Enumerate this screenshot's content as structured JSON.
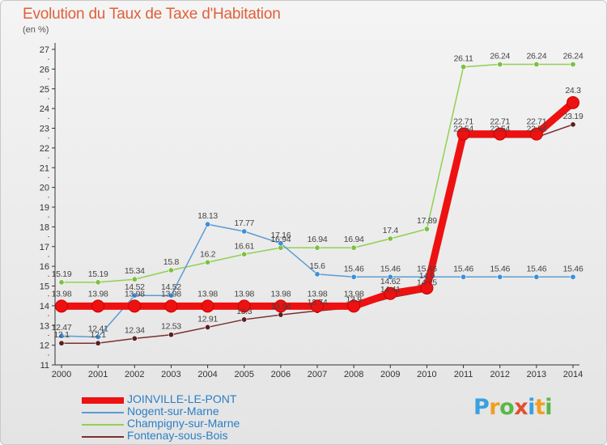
{
  "header": {
    "title": "Evolution du Taux de Taxe d'Habitation",
    "subtitle": "(en %)"
  },
  "brand": {
    "letters": [
      "P",
      "r",
      "o",
      "x",
      "i",
      "t",
      "i"
    ],
    "colors": [
      "#3aa0e0",
      "#f0a020",
      "#58b848",
      "#e05030",
      "#3aa0e0",
      "#f0a020",
      "#58b848"
    ]
  },
  "chart_data": {
    "type": "line",
    "title": "Evolution du Taux de Taxe d'Habitation",
    "ylabel": "(en %)",
    "xlabel": "",
    "x": [
      "2000",
      "2001",
      "2002",
      "2003",
      "2004",
      "2005",
      "2006",
      "2007",
      "2008",
      "2009",
      "2010",
      "2011",
      "2012",
      "2013",
      "2014"
    ],
    "ylim": [
      11,
      27
    ],
    "yticks": [
      "11",
      "12",
      "13",
      "14",
      "15",
      "16",
      "17",
      "18",
      "19",
      "20",
      "21",
      "22",
      "23",
      "24",
      "25",
      "26",
      "27"
    ],
    "grid": false,
    "legend_position": "bottom-left",
    "series": [
      {
        "name": "JOINVILLE-LE-PONT",
        "color": "#ee1111",
        "values": [
          13.98,
          13.98,
          13.98,
          13.98,
          13.98,
          13.98,
          13.98,
          13.98,
          13.98,
          14.62,
          14.9,
          22.71,
          22.71,
          22.71,
          24.3
        ],
        "labels": [
          "13.98",
          "13.98",
          "13.98",
          "13.98",
          "13.98",
          "13.98",
          "13.98",
          "13.98",
          "13.98",
          "14.62",
          "14.9",
          "22.71",
          "22.71",
          "22.71",
          "24.3"
        ]
      },
      {
        "name": "Nogent-sur-Marne",
        "color": "#5b9bd5",
        "values": [
          12.47,
          12.41,
          14.52,
          14.52,
          18.13,
          17.77,
          17.16,
          15.6,
          15.46,
          15.46,
          15.46,
          15.46,
          15.46,
          15.46,
          15.46
        ],
        "labels": [
          "12.47",
          "12.41",
          "14.52",
          "14.52",
          "18.13",
          "17.77",
          "17.16",
          "15.6",
          "15.46",
          "15.46",
          "15.46",
          "15.46",
          "15.46",
          "15.46",
          "15.46"
        ]
      },
      {
        "name": "Champigny-sur-Marne",
        "color": "#92d050",
        "values": [
          15.19,
          15.19,
          15.34,
          15.8,
          16.2,
          16.61,
          16.94,
          16.94,
          16.94,
          17.4,
          17.89,
          26.11,
          26.24,
          26.24,
          26.24
        ],
        "labels": [
          "15.19",
          "15.19",
          "15.34",
          "15.8",
          "16.2",
          "16.61",
          "16.94",
          "16.94",
          "16.94",
          "17.4",
          "17.89",
          "26.11",
          "26.24",
          "26.24",
          "26.24"
        ]
      },
      {
        "name": "Fontenay-sous-Bois",
        "color": "#7b3030",
        "values": [
          12.1,
          12.1,
          12.34,
          12.53,
          12.91,
          13.3,
          13.54,
          13.74,
          13.9,
          14.41,
          14.75,
          22.54,
          22.54,
          22.54,
          23.19
        ],
        "labels": [
          "12.1",
          "12.1",
          "12.34",
          "12.53",
          "12.91",
          "13.3",
          "13.54",
          "13.74",
          "13.9",
          "14.41",
          "14.75",
          "22.54",
          "22.54",
          "22.54",
          "23.19"
        ]
      }
    ]
  }
}
